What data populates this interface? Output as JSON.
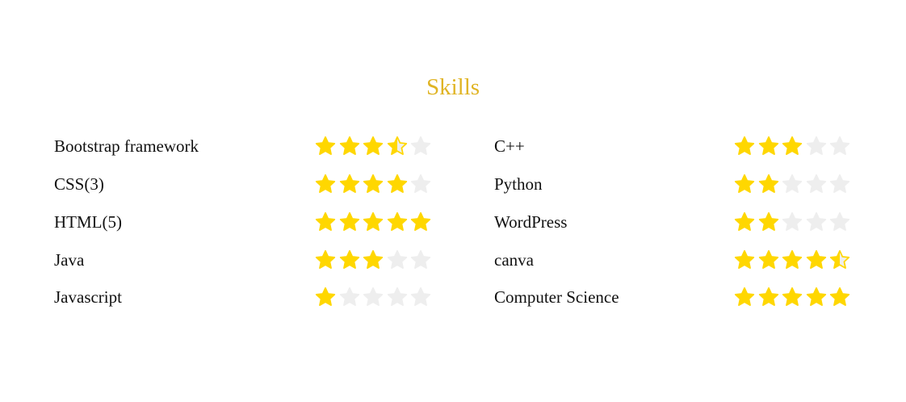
{
  "title": "Skills",
  "colors": {
    "title": "#e0b424",
    "star_filled": "#ffd700",
    "star_empty": "#eeeeee",
    "text": "#111111"
  },
  "star_icon": "star-icon",
  "max_rating": 5,
  "skills": [
    {
      "name": "Bootstrap framework",
      "rating": 3.5
    },
    {
      "name": "CSS(3)",
      "rating": 4
    },
    {
      "name": "HTML(5)",
      "rating": 5
    },
    {
      "name": "Java",
      "rating": 3
    },
    {
      "name": "Javascript",
      "rating": 1
    },
    {
      "name": "C++",
      "rating": 3
    },
    {
      "name": "Python",
      "rating": 2
    },
    {
      "name": "WordPress",
      "rating": 2
    },
    {
      "name": "canva",
      "rating": 4.5
    },
    {
      "name": "Computer Science",
      "rating": 5
    }
  ]
}
